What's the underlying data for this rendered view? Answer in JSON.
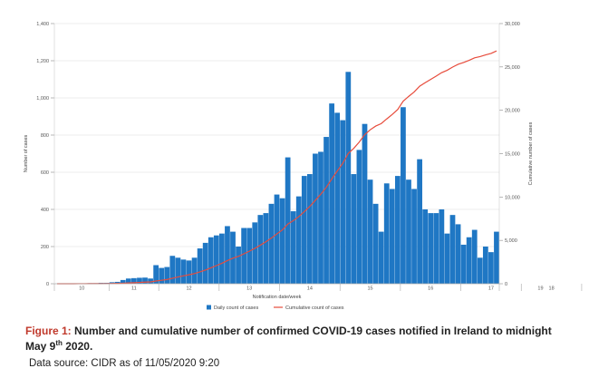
{
  "chart_data": {
    "type": "bar",
    "title": "",
    "xlabel": "Notification date/week",
    "ylabel": "Number of cases",
    "y2label": "Cumulative number of cases",
    "ylim": [
      0,
      1400
    ],
    "y2lim": [
      0,
      30000
    ],
    "yticks": [
      0,
      200,
      400,
      600,
      800,
      1000,
      1200,
      1400
    ],
    "y2ticks": [
      "0",
      "5,000",
      "10,000",
      "15,000",
      "20,000",
      "25,000",
      "30,000"
    ],
    "week_labels": [
      "10",
      "11",
      "12",
      "13",
      "14",
      "15",
      "16",
      "17",
      "18",
      "19"
    ],
    "week_start_day": [
      0,
      10,
      19,
      30,
      41,
      52,
      63,
      74,
      85,
      96
    ],
    "legend_position": "bottom",
    "series": [
      {
        "name": "Daily count of cases",
        "type": "bar",
        "color": "#1f77c4",
        "values": [
          0,
          1,
          1,
          1,
          1,
          2,
          3,
          3,
          5,
          5,
          8,
          10,
          20,
          28,
          30,
          32,
          33,
          28,
          100,
          85,
          90,
          150,
          140,
          130,
          125,
          140,
          190,
          220,
          250,
          260,
          270,
          310,
          280,
          200,
          300,
          300,
          330,
          370,
          380,
          430,
          480,
          460,
          680,
          390,
          470,
          580,
          590,
          700,
          710,
          790,
          970,
          920,
          880,
          1140,
          590,
          720,
          860,
          560,
          430,
          280,
          540,
          510,
          580,
          950,
          560,
          510,
          670,
          400,
          380,
          380,
          400,
          270,
          370,
          320,
          210,
          250,
          290,
          140,
          200,
          170,
          280
        ]
      },
      {
        "name": "Cumulative count of cases",
        "type": "line",
        "color": "#e74c3c",
        "axis": "secondary"
      }
    ]
  },
  "caption": {
    "figure_label": "Figure 1:",
    "text_before_sup": "Number and cumulative number of confirmed COVID-19 cases notified in Ireland to midnight May 9",
    "sup": "th",
    "text_after_sup": " 2020."
  },
  "source": "Data source: CIDR as of 11/05/2020 9:20"
}
